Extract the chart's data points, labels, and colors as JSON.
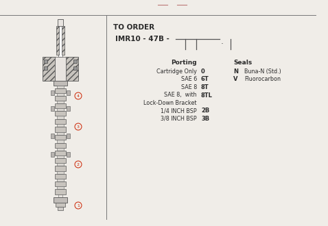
{
  "bg_color": "#f0ede8",
  "text_color": "#2a2a2a",
  "red_color": "#cc2200",
  "line_color": "#777777",
  "draw_color": "#555555",
  "title_text": "TO ORDER",
  "model_text": "IMR10 - 47B -",
  "porting_header": "Porting",
  "porting_rows": [
    [
      "Cartridge Only",
      "0"
    ],
    [
      "SAE 6",
      "6T"
    ],
    [
      "SAE 8",
      "8T"
    ],
    [
      "SAE 8,  with",
      "8TL"
    ],
    [
      "Lock-Down Bracket",
      ""
    ],
    [
      "1/4 INCH BSP",
      "2B"
    ],
    [
      "3/8 INCH BSP",
      "3B"
    ]
  ],
  "seals_header": "Seals",
  "seals_rows": [
    [
      "N",
      "Buna-N (Std.)"
    ],
    [
      "V",
      "Fluorocarbon"
    ]
  ],
  "figsize": [
    4.78,
    3.3
  ],
  "dpi": 100
}
